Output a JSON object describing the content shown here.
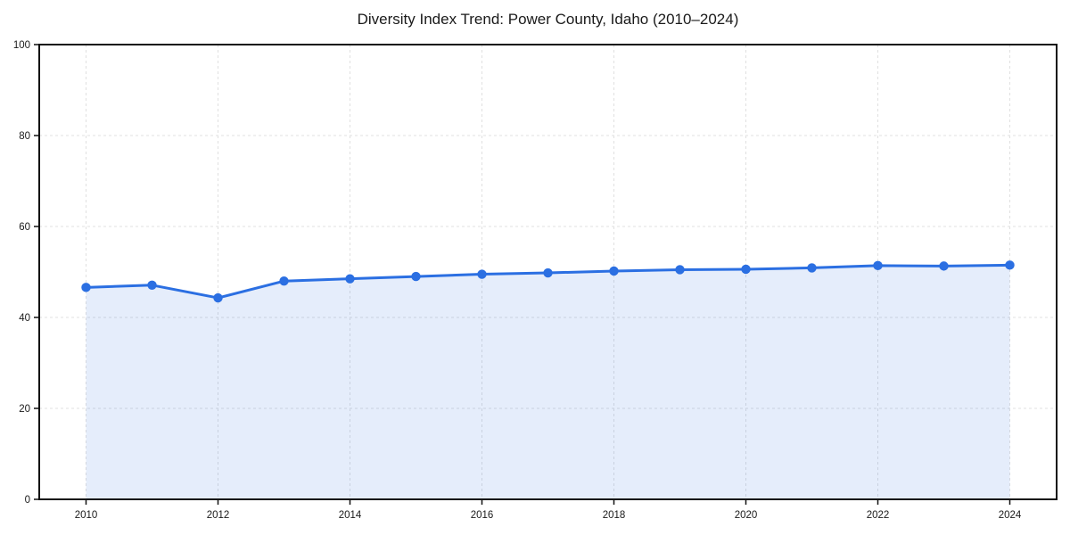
{
  "chart_data": {
    "type": "line",
    "title": "Diversity Index Trend: Power County, Idaho (2010–2024)",
    "series_name": "Diversity Index",
    "x": [
      2010,
      2011,
      2012,
      2013,
      2014,
      2015,
      2016,
      2017,
      2018,
      2019,
      2020,
      2021,
      2022,
      2023,
      2024
    ],
    "values": [
      46.6,
      47.1,
      44.3,
      48.0,
      48.5,
      49.0,
      49.5,
      49.8,
      50.2,
      50.5,
      50.6,
      50.9,
      51.4,
      51.3,
      51.5
    ],
    "xlabel": "",
    "ylabel": "",
    "ylim": [
      0,
      100
    ],
    "x_ticks": [
      2010,
      2012,
      2014,
      2016,
      2018,
      2020,
      2022,
      2024
    ],
    "y_ticks": [
      0,
      20,
      40,
      60,
      80,
      100
    ],
    "grid": true,
    "grid_style": "dashed",
    "legend": "none",
    "area_fill": true,
    "marker": "circle",
    "colors": {
      "line": "#2b6fe2",
      "marker": "#2b6fe2",
      "area_fill": "rgba(43, 111, 226, 0.12)",
      "gridline": "#e0e0e0",
      "axis": "#111111",
      "text": "#1a1a1a",
      "background": "#ffffff"
    }
  }
}
